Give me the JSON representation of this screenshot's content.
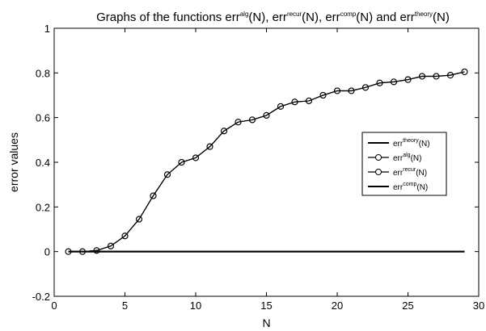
{
  "chart_data": {
    "type": "line",
    "title": {
      "prefix": "Graphs of the functions ",
      "parts": [
        {
          "base": "err",
          "sup": "alg",
          "arg": "(N)",
          "sep": ",  "
        },
        {
          "base": "err",
          "sup": "recur",
          "arg": "(N)",
          "sep": ", "
        },
        {
          "base": "err",
          "sup": "comp",
          "arg": "(N)",
          "sep": " and "
        },
        {
          "base": "err",
          "sup": "theory",
          "arg": "(N)",
          "sep": ""
        }
      ]
    },
    "xlabel": "N",
    "ylabel": "error values",
    "xlim": [
      0,
      30
    ],
    "ylim": [
      -0.2,
      1
    ],
    "xticks": [
      0,
      5,
      10,
      15,
      20,
      25,
      30
    ],
    "xtick_labels": [
      "0",
      "5",
      "10",
      "15",
      "20",
      "25",
      "30"
    ],
    "yticks": [
      -0.2,
      0,
      0.2,
      0.4,
      0.6,
      0.8,
      1
    ],
    "ytick_labels": [
      "-0.2",
      "0",
      "0.2",
      "0.4",
      "0.6",
      "0.8",
      "1"
    ],
    "grid": false,
    "legend_position": "right",
    "x": [
      1,
      2,
      3,
      4,
      5,
      6,
      7,
      8,
      9,
      10,
      11,
      12,
      13,
      14,
      15,
      16,
      17,
      18,
      19,
      20,
      21,
      22,
      23,
      24,
      25,
      26,
      27,
      28,
      29
    ],
    "series": [
      {
        "name": {
          "base": "err",
          "sup": "theory",
          "arg": "(N)"
        },
        "style": "line",
        "color": "#000000",
        "values": [
          0,
          0,
          0,
          0,
          0,
          0,
          0,
          0,
          0,
          0,
          0,
          0,
          0,
          0,
          0,
          0,
          0,
          0,
          0,
          0,
          0,
          0,
          0,
          0,
          0,
          0,
          0,
          0,
          0
        ]
      },
      {
        "name": {
          "base": "err",
          "sup": "alg",
          "arg": "(N)"
        },
        "style": "line-circle",
        "color": "#000000",
        "values": [
          0.0,
          0.0,
          0.005,
          0.025,
          0.07,
          0.145,
          0.25,
          0.345,
          0.4,
          0.42,
          0.47,
          0.54,
          0.58,
          0.59,
          0.61,
          0.65,
          0.67,
          0.675,
          0.7,
          0.72,
          0.72,
          0.735,
          0.755,
          0.76,
          0.77,
          0.785,
          0.785,
          0.79,
          0.805
        ]
      },
      {
        "name": {
          "base": "err",
          "sup": "recur",
          "arg": "(N)"
        },
        "style": "line-circle",
        "color": "#000000",
        "values": [
          0.0,
          0.0,
          0.005,
          0.025,
          0.07,
          0.145,
          0.25,
          0.345,
          0.4,
          0.42,
          0.47,
          0.54,
          0.58,
          0.59,
          0.61,
          0.65,
          0.67,
          0.675,
          0.7,
          0.72,
          0.72,
          0.735,
          0.755,
          0.76,
          0.77,
          0.785,
          0.785,
          0.79,
          0.805
        ]
      },
      {
        "name": {
          "base": "err",
          "sup": "comp",
          "arg": "(N)"
        },
        "style": "line",
        "color": "#000000",
        "values": [
          0,
          0,
          0,
          0,
          0,
          0,
          0,
          0,
          0,
          0,
          0,
          0,
          0,
          0,
          0,
          0,
          0,
          0,
          0,
          0,
          0,
          0,
          0,
          0,
          0,
          0,
          0,
          0,
          0
        ]
      }
    ]
  }
}
